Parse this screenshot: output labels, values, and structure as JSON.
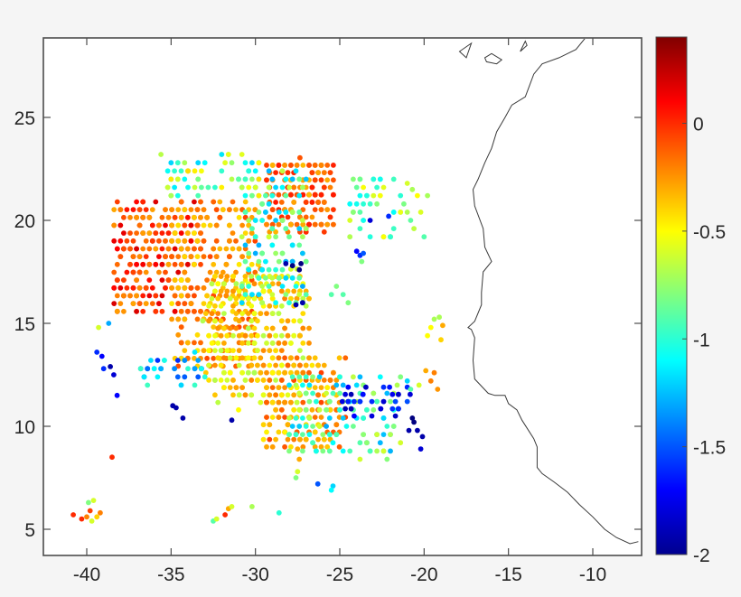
{
  "chart_data": {
    "type": "scatter",
    "title": "",
    "xlabel": "",
    "ylabel": "",
    "xlim": [
      -43.2,
      -7.0
    ],
    "ylim": [
      3.8,
      29.0
    ],
    "grid": false,
    "xticks": [
      -40,
      -35,
      -30,
      -25,
      -20,
      -15,
      -10
    ],
    "xtick_labels": [
      "-40",
      "-35",
      "-30",
      "-25",
      "-20",
      "-15",
      "-10"
    ],
    "yticks": [
      5,
      10,
      15,
      20,
      25
    ],
    "ytick_labels": [
      "5",
      "10",
      "15",
      "20",
      "25"
    ],
    "colorbar": {
      "colormap": "jet",
      "clim": [
        -2.0,
        0.4
      ],
      "ticks": [
        0,
        -0.5,
        -1,
        -1.5,
        -2
      ],
      "tick_labels": [
        "0",
        "-0.5",
        "-1",
        "-1.5",
        "-2"
      ],
      "position": "right"
    },
    "coastline": {
      "description": "West African coastline outline (lon, lat)",
      "mainland": [
        [
          -7.3,
          4.4
        ],
        [
          -7.8,
          4.3
        ],
        [
          -8.6,
          4.6
        ],
        [
          -9.3,
          5.0
        ],
        [
          -10.0,
          5.6
        ],
        [
          -10.8,
          6.2
        ],
        [
          -11.5,
          6.8
        ],
        [
          -12.3,
          7.3
        ],
        [
          -13.0,
          7.7
        ],
        [
          -13.3,
          8.0
        ],
        [
          -13.3,
          9.0
        ],
        [
          -13.5,
          9.4
        ],
        [
          -14.2,
          10.3
        ],
        [
          -14.5,
          10.8
        ],
        [
          -15.0,
          11.1
        ],
        [
          -15.2,
          11.5
        ],
        [
          -15.8,
          11.5
        ],
        [
          -16.2,
          11.6
        ],
        [
          -17.0,
          12.3
        ],
        [
          -17.1,
          13.2
        ],
        [
          -17.0,
          14.3
        ],
        [
          -17.2,
          14.7
        ],
        [
          -17.4,
          14.8
        ],
        [
          -17.0,
          15.1
        ],
        [
          -16.6,
          15.9
        ],
        [
          -16.6,
          16.5
        ],
        [
          -16.5,
          17.5
        ],
        [
          -16.0,
          18.0
        ],
        [
          -16.4,
          18.7
        ],
        [
          -16.5,
          19.6
        ],
        [
          -17.0,
          20.7
        ],
        [
          -17.1,
          21.5
        ],
        [
          -16.8,
          22.0
        ],
        [
          -16.4,
          22.8
        ],
        [
          -16.0,
          23.5
        ],
        [
          -15.7,
          24.3
        ],
        [
          -15.2,
          25.0
        ],
        [
          -14.8,
          25.6
        ],
        [
          -14.0,
          26.0
        ],
        [
          -13.5,
          27.1
        ],
        [
          -13.0,
          27.6
        ],
        [
          -12.0,
          27.9
        ],
        [
          -11.0,
          28.3
        ],
        [
          -10.4,
          28.9
        ],
        [
          -10.0,
          29.0
        ]
      ],
      "islands": [
        [
          [
            -17.9,
            28.2
          ],
          [
            -17.2,
            28.6
          ],
          [
            -17.5,
            27.9
          ],
          [
            -17.9,
            28.2
          ]
        ],
        [
          [
            -16.4,
            27.9
          ],
          [
            -16.0,
            28.1
          ],
          [
            -15.4,
            27.8
          ],
          [
            -15.7,
            27.6
          ],
          [
            -16.3,
            27.7
          ],
          [
            -16.4,
            27.9
          ]
        ],
        [
          [
            -14.3,
            28.2
          ],
          [
            -13.9,
            28.5
          ],
          [
            -14.0,
            28.7
          ],
          [
            -14.3,
            28.2
          ]
        ]
      ]
    },
    "clusters": [
      {
        "name": "west-red-arc",
        "lon": [
          -38.5,
          -33.5
        ],
        "lat": [
          15.5,
          21.0
        ],
        "value": [
          -0.3,
          0.2
        ],
        "n": 300,
        "spacing": 0.38
      },
      {
        "name": "central-orange",
        "lon": [
          -35.0,
          -30.0
        ],
        "lat": [
          13.0,
          21.0
        ],
        "value": [
          -0.45,
          -0.05
        ],
        "n": 320,
        "spacing": 0.38
      },
      {
        "name": "north-orange-top",
        "lon": [
          -29.5,
          -25.5
        ],
        "lat": [
          19.5,
          22.9
        ],
        "value": [
          -0.35,
          0.05
        ],
        "n": 200,
        "spacing": 0.36
      },
      {
        "name": "central-yellow",
        "lon": [
          -33.0,
          -27.0
        ],
        "lat": [
          11.0,
          17.5
        ],
        "value": [
          -0.7,
          -0.2
        ],
        "n": 380,
        "spacing": 0.36
      },
      {
        "name": "cyan-north-mixed",
        "lon": [
          -31.0,
          -27.0
        ],
        "lat": [
          16.0,
          22.5
        ],
        "value": [
          -1.3,
          -0.6
        ],
        "n": 160,
        "spacing": 0.4
      },
      {
        "name": "south-orange",
        "lon": [
          -29.5,
          -25.0
        ],
        "lat": [
          9.0,
          13.5
        ],
        "value": [
          -0.5,
          -0.05
        ],
        "n": 180,
        "spacing": 0.36
      },
      {
        "name": "southeast-cyan",
        "lon": [
          -28.0,
          -21.5
        ],
        "lat": [
          8.5,
          12.5
        ],
        "value": [
          -1.3,
          -0.6
        ],
        "n": 140,
        "spacing": 0.4
      },
      {
        "name": "east-blue-streak",
        "lon": [
          -25.0,
          -21.0
        ],
        "lat": [
          10.5,
          12.0
        ],
        "value": [
          -1.9,
          -1.5
        ],
        "n": 35,
        "spacing": 0.35
      },
      {
        "name": "west-cyan-blue",
        "lon": [
          -37.0,
          -33.0
        ],
        "lat": [
          12.0,
          13.5
        ],
        "value": [
          -1.6,
          -0.9
        ],
        "n": 40,
        "spacing": 0.4
      },
      {
        "name": "north-scatter",
        "lon": [
          -35.5,
          -30.0
        ],
        "lat": [
          21.0,
          23.3
        ],
        "value": [
          -1.2,
          -0.4
        ],
        "n": 60,
        "spacing": 0.4
      },
      {
        "name": "northeast-scatter",
        "lon": [
          -24.5,
          -20.0
        ],
        "lat": [
          19.0,
          22.0
        ],
        "value": [
          -1.1,
          -0.5
        ],
        "n": 50,
        "spacing": 0.4
      }
    ],
    "points": [
      {
        "lon": -40.8,
        "lat": 5.7,
        "value": 0.0
      },
      {
        "lon": -40.3,
        "lat": 5.5,
        "value": 0.0
      },
      {
        "lon": -40.0,
        "lat": 5.6,
        "value": -0.2
      },
      {
        "lon": -39.8,
        "lat": 5.9,
        "value": -0.05
      },
      {
        "lon": -39.9,
        "lat": 6.3,
        "value": -0.8
      },
      {
        "lon": -39.6,
        "lat": 6.4,
        "value": -0.6
      },
      {
        "lon": -39.4,
        "lat": 5.6,
        "value": -0.4
      },
      {
        "lon": -39.2,
        "lat": 5.8,
        "value": -0.2
      },
      {
        "lon": -39.7,
        "lat": 5.4,
        "value": -0.6
      },
      {
        "lon": -38.5,
        "lat": 8.5,
        "value": 0.0
      },
      {
        "lon": -32.5,
        "lat": 5.4,
        "value": -0.9
      },
      {
        "lon": -32.3,
        "lat": 5.5,
        "value": -0.6
      },
      {
        "lon": -31.8,
        "lat": 5.7,
        "value": 0.0
      },
      {
        "lon": -31.6,
        "lat": 6.0,
        "value": -0.3
      },
      {
        "lon": -31.4,
        "lat": 6.1,
        "value": -0.6
      },
      {
        "lon": -30.2,
        "lat": 6.1,
        "value": -0.7
      },
      {
        "lon": -28.6,
        "lat": 5.8,
        "value": -1.0
      },
      {
        "lon": -34.7,
        "lat": 10.9,
        "value": -1.9
      },
      {
        "lon": -34.9,
        "lat": 11.0,
        "value": -1.9
      },
      {
        "lon": -34.3,
        "lat": 10.4,
        "value": -1.9
      },
      {
        "lon": -31.4,
        "lat": 10.3,
        "value": -1.9
      },
      {
        "lon": -39.4,
        "lat": 13.6,
        "value": -1.6
      },
      {
        "lon": -39.1,
        "lat": 13.4,
        "value": -1.7
      },
      {
        "lon": -38.6,
        "lat": 12.9,
        "value": -1.9
      },
      {
        "lon": -39.0,
        "lat": 12.8,
        "value": -1.6
      },
      {
        "lon": -38.4,
        "lat": 12.5,
        "value": -1.8
      },
      {
        "lon": -38.2,
        "lat": 11.5,
        "value": -1.7
      },
      {
        "lon": -39.3,
        "lat": 14.8,
        "value": -0.6
      },
      {
        "lon": -38.7,
        "lat": 15.0,
        "value": -1.3
      },
      {
        "lon": -20.7,
        "lat": 10.4,
        "value": -2.0
      },
      {
        "lon": -20.6,
        "lat": 10.2,
        "value": -2.0
      },
      {
        "lon": -20.4,
        "lat": 9.8,
        "value": -1.9
      },
      {
        "lon": -20.9,
        "lat": 9.8,
        "value": -1.9
      },
      {
        "lon": -20.1,
        "lat": 9.5,
        "value": -1.9
      },
      {
        "lon": -20.2,
        "lat": 8.9,
        "value": -1.8
      },
      {
        "lon": -19.6,
        "lat": 14.8,
        "value": -0.5
      },
      {
        "lon": -19.4,
        "lat": 15.2,
        "value": -0.7
      },
      {
        "lon": -19.1,
        "lat": 15.3,
        "value": -0.7
      },
      {
        "lon": -18.9,
        "lat": 14.9,
        "value": -0.3
      },
      {
        "lon": -19.0,
        "lat": 14.2,
        "value": -0.4
      },
      {
        "lon": -19.8,
        "lat": 14.4,
        "value": -0.5
      },
      {
        "lon": -19.9,
        "lat": 12.7,
        "value": -0.3
      },
      {
        "lon": -19.4,
        "lat": 12.6,
        "value": -0.2
      },
      {
        "lon": -19.6,
        "lat": 12.2,
        "value": -0.2
      },
      {
        "lon": -19.2,
        "lat": 11.8,
        "value": -0.25
      },
      {
        "lon": -20.3,
        "lat": 12.0,
        "value": -0.6
      },
      {
        "lon": -20.8,
        "lat": 11.8,
        "value": -0.9
      },
      {
        "lon": -21.0,
        "lat": 12.2,
        "value": -1.2
      },
      {
        "lon": -24.0,
        "lat": 18.5,
        "value": -1.7
      },
      {
        "lon": -23.8,
        "lat": 18.3,
        "value": -1.6
      },
      {
        "lon": -23.6,
        "lat": 18.4,
        "value": -1.5
      },
      {
        "lon": -23.7,
        "lat": 18.0,
        "value": -0.8
      },
      {
        "lon": -27.8,
        "lat": 17.8,
        "value": -2.0
      },
      {
        "lon": -27.4,
        "lat": 17.6,
        "value": -2.0
      },
      {
        "lon": -27.3,
        "lat": 17.9,
        "value": -2.0
      },
      {
        "lon": -28.2,
        "lat": 17.9,
        "value": -1.9
      },
      {
        "lon": -27.2,
        "lat": 16.0,
        "value": -1.9
      },
      {
        "lon": -27.6,
        "lat": 15.9,
        "value": -1.9
      },
      {
        "lon": -25.2,
        "lat": 16.8,
        "value": -0.8
      },
      {
        "lon": -24.8,
        "lat": 16.4,
        "value": -0.9
      },
      {
        "lon": -24.5,
        "lat": 16.0,
        "value": -0.8
      },
      {
        "lon": -25.5,
        "lat": 16.4,
        "value": -0.9
      },
      {
        "lon": -21.0,
        "lat": 21.8,
        "value": -0.6
      },
      {
        "lon": -20.7,
        "lat": 21.5,
        "value": -0.7
      },
      {
        "lon": -20.4,
        "lat": 21.2,
        "value": -0.5
      },
      {
        "lon": -22.1,
        "lat": 20.2,
        "value": -1.6
      },
      {
        "lon": -23.2,
        "lat": 20.0,
        "value": -1.8
      },
      {
        "lon": -27.4,
        "lat": 8.4,
        "value": -0.3
      },
      {
        "lon": -27.5,
        "lat": 7.8,
        "value": -0.6
      },
      {
        "lon": -27.6,
        "lat": 7.5,
        "value": -0.8
      },
      {
        "lon": -26.3,
        "lat": 7.2,
        "value": -1.5
      },
      {
        "lon": -25.4,
        "lat": 7.1,
        "value": -1.2
      },
      {
        "lon": -25.5,
        "lat": 6.9,
        "value": -1.1
      },
      {
        "lon": -31.0,
        "lat": 10.8,
        "value": -0.5
      },
      {
        "lon": -27.5,
        "lat": 8.9,
        "value": -0.3
      }
    ]
  },
  "axes": {
    "x_tick_labels": [
      "-40",
      "-35",
      "-30",
      "-25",
      "-20",
      "-15",
      "-10"
    ],
    "y_tick_labels": [
      "5",
      "10",
      "15",
      "20",
      "25"
    ]
  },
  "colorbar_labels": [
    "0",
    "-0.5",
    "-1",
    "-1.5",
    "-2"
  ],
  "colors": {
    "background": "#f5f5f5",
    "plot_background": "#ffffff",
    "axis": "#4d4d4d",
    "coastline": "#3a3a3a",
    "text": "#262626"
  }
}
